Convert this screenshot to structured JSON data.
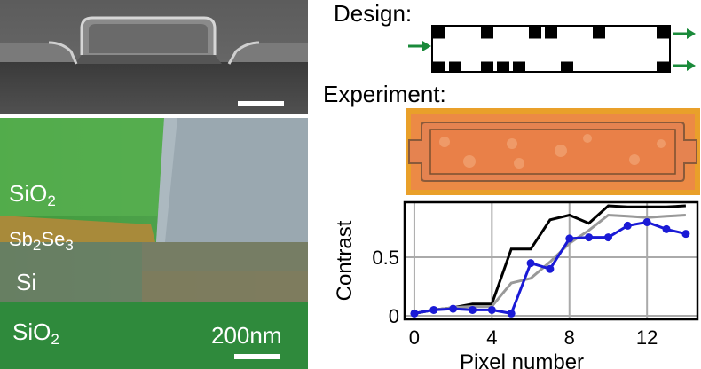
{
  "sem_image": {
    "scale_bar_label": ""
  },
  "tem_image": {
    "layers": {
      "sio2_top": {
        "base": "SiO",
        "sub": "2"
      },
      "sb2se3": {
        "base1": "Sb",
        "sub1": "2",
        "base2": "Se",
        "sub2": "3"
      },
      "si": {
        "base": "Si"
      },
      "sio2_bottom": {
        "base": "SiO",
        "sub": "2"
      }
    },
    "scale_bar_label": "200nm"
  },
  "design": {
    "heading": "Design:",
    "grid": {
      "columns": 15,
      "rows": 2,
      "row1_filled": [
        0,
        3,
        6,
        7,
        10,
        14
      ],
      "row2_filled": [
        0,
        1,
        3,
        4,
        5,
        8,
        14
      ],
      "fill_color": "#000000",
      "arrow_color": "#1a8a3a"
    }
  },
  "experiment": {
    "heading": "Experiment:",
    "colors": {
      "frame": "#e6a020",
      "body": "#e8834a",
      "spots": "#f0a070"
    }
  },
  "chart_data": {
    "type": "line",
    "xlabel": "Pixel number",
    "ylabel": "Contrast",
    "xlim": [
      -0.5,
      14.6
    ],
    "ylim": [
      -0.03,
      0.97
    ],
    "xticks": [
      0,
      4,
      8,
      12
    ],
    "yticks": [
      0,
      0.5
    ],
    "ytick_labels": [
      "0",
      "0.5"
    ],
    "grid": true,
    "series": [
      {
        "color": "#000000",
        "marker": false,
        "x": [
          0,
          1,
          2,
          3,
          4,
          5,
          6,
          7,
          8,
          9,
          10,
          11,
          12,
          13,
          14
        ],
        "y": [
          0.02,
          0.05,
          0.07,
          0.1,
          0.1,
          0.57,
          0.57,
          0.82,
          0.86,
          0.79,
          0.94,
          0.93,
          0.93,
          0.93,
          0.94
        ]
      },
      {
        "color": "#999999",
        "marker": false,
        "x": [
          0,
          1,
          2,
          3,
          4,
          5,
          6,
          7,
          8,
          9,
          10,
          11,
          12,
          13,
          14
        ],
        "y": [
          0.02,
          0.05,
          0.07,
          0.08,
          0.08,
          0.28,
          0.32,
          0.46,
          0.62,
          0.73,
          0.86,
          0.85,
          0.84,
          0.85,
          0.86
        ]
      },
      {
        "color": "#1a1ad6",
        "marker": true,
        "x": [
          0,
          1,
          2,
          3,
          4,
          5,
          6,
          7,
          8,
          9,
          10,
          11,
          12,
          13,
          14
        ],
        "y": [
          0.02,
          0.05,
          0.06,
          0.05,
          0.05,
          0.02,
          0.45,
          0.4,
          0.66,
          0.67,
          0.67,
          0.77,
          0.8,
          0.74,
          0.7
        ]
      }
    ]
  }
}
